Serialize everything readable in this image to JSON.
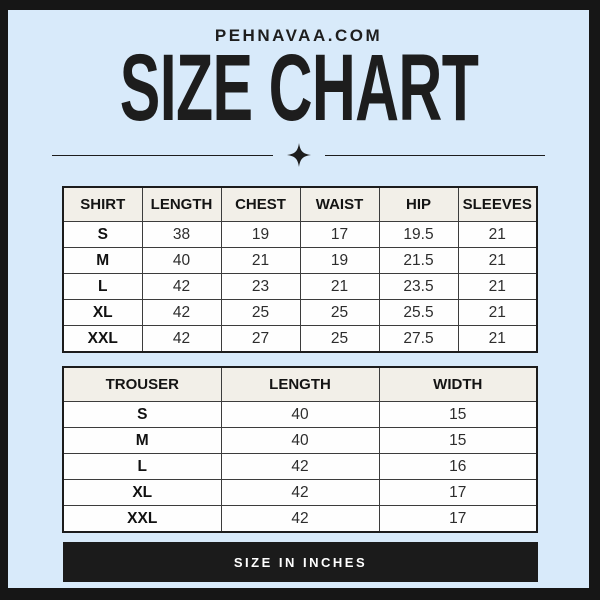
{
  "brand": "PEHNAVAA.COM",
  "title": "SIZE CHART",
  "divider": {
    "icon": "sparkle-icon"
  },
  "shirt_table": {
    "headers": [
      "SHIRT",
      "LENGTH",
      "CHEST",
      "WAIST",
      "HIP",
      "SLEEVES"
    ],
    "rows": [
      [
        "S",
        "38",
        "19",
        "17",
        "19.5",
        "21"
      ],
      [
        "M",
        "40",
        "21",
        "19",
        "21.5",
        "21"
      ],
      [
        "L",
        "42",
        "23",
        "21",
        "23.5",
        "21"
      ],
      [
        "XL",
        "42",
        "25",
        "25",
        "25.5",
        "21"
      ],
      [
        "XXL",
        "42",
        "27",
        "25",
        "27.5",
        "21"
      ]
    ]
  },
  "trouser_table": {
    "headers": [
      "TROUSER",
      "LENGTH",
      "WIDTH"
    ],
    "rows": [
      [
        "S",
        "40",
        "15"
      ],
      [
        "M",
        "40",
        "15"
      ],
      [
        "L",
        "42",
        "16"
      ],
      [
        "XL",
        "42",
        "17"
      ],
      [
        "XXL",
        "42",
        "17"
      ]
    ]
  },
  "footer": {
    "label": "SIZE IN INCHES"
  },
  "colors": {
    "background": "#d8eafa",
    "frame": "#161616",
    "table_header_bg": "#f2efe8",
    "table_cell_bg": "#fefefe",
    "table_border": "#3c3c3c",
    "text": "#1e1e1e",
    "footer_bg": "#1b1b1b",
    "footer_text": "#ffffff"
  }
}
